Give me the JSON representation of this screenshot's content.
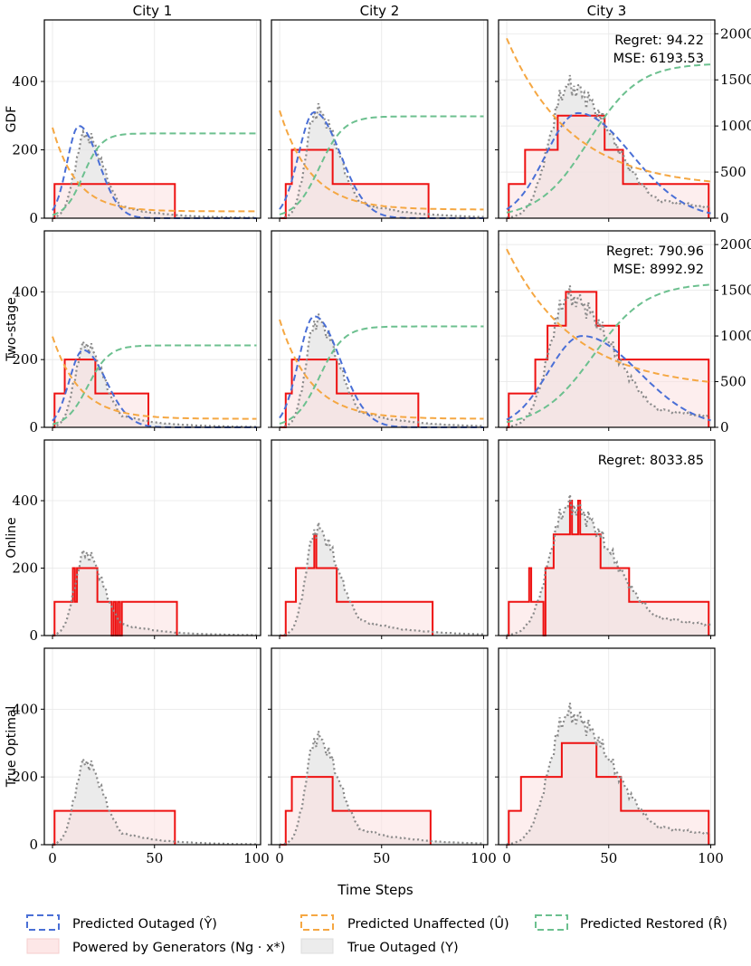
{
  "figure": {
    "xlabel": "Time Steps",
    "x_ticks": [
      0,
      50,
      100
    ],
    "y_ticks_left": [
      0,
      200,
      400
    ],
    "y_ticks_right": [
      0,
      500,
      1000,
      1500,
      2000
    ]
  },
  "columns": [
    "City 1",
    "City 2",
    "City 3"
  ],
  "rows": [
    "GDF",
    "Two-stage",
    "Online",
    "True Optimal"
  ],
  "colors": {
    "predicted_outaged": "#4a6fd6",
    "predicted_unaffected": "#f5a742",
    "predicted_restored": "#6cc08f",
    "powered": "#ee1111",
    "powered_fill": "#fbe0e0",
    "true_outaged": "#8a8a8a",
    "true_outaged_fill": "#e4e4e4"
  },
  "legend": [
    {
      "key": "predicted_outaged",
      "label": "Predicted Outaged (Ŷ)",
      "style": "dashed"
    },
    {
      "key": "predicted_unaffected",
      "label": "Predicted Unaffected (Û)",
      "style": "dashed"
    },
    {
      "key": "predicted_restored",
      "label": "Predicted Restored (R̂)",
      "style": "dashed"
    },
    {
      "key": "powered",
      "label": "Powered by Generators (Ng · x*)",
      "style": "fill"
    },
    {
      "key": "true_outaged",
      "label": "True Outaged (Y)",
      "style": "fill"
    }
  ],
  "annotations": {
    "gdf_city3": [
      "Regret:  94.22",
      "MSE:  6193.53"
    ],
    "twostage_city3": [
      "Regret:  790.96",
      "MSE:  8992.92"
    ],
    "online_city3": [
      "Regret:  8033.85"
    ]
  },
  "chart_data": {
    "type": "line",
    "x_range": [
      0,
      100
    ],
    "ylim_left": [
      0,
      580
    ],
    "ylim_right": [
      0,
      2150
    ],
    "true_outaged": [
      {
        "city": "City 1",
        "peak": 245,
        "peak_at": 16,
        "rise": 5,
        "decay": 9
      },
      {
        "city": "City 2",
        "peak": 315,
        "peak_at": 18,
        "rise": 5,
        "decay": 11
      },
      {
        "city": "City 3",
        "peak": 385,
        "peak_at": 30,
        "rise": 9,
        "decay": 22
      }
    ],
    "predicted": {
      "GDF": [
        {
          "outaged_peak": 270,
          "outaged_at": 13,
          "unaffected_start": 265,
          "unaffected_end": 20,
          "restored_end": 248
        },
        {
          "outaged_peak": 310,
          "outaged_at": 17,
          "unaffected_start": 315,
          "unaffected_end": 25,
          "restored_end": 298
        },
        {
          "outaged_peak": 1140,
          "outaged_at": 35,
          "unaffected_start": 1950,
          "unaffected_end": 330,
          "restored_end": 1680
        }
      ],
      "Two-stage": [
        {
          "outaged_peak": 228,
          "outaged_at": 15,
          "unaffected_start": 268,
          "unaffected_end": 25,
          "restored_end": 242
        },
        {
          "outaged_peak": 328,
          "outaged_at": 17,
          "unaffected_start": 318,
          "unaffected_end": 25,
          "restored_end": 298
        },
        {
          "outaged_peak": 1000,
          "outaged_at": 37,
          "unaffected_start": 1950,
          "unaffected_end": 420,
          "restored_end": 1580
        }
      ]
    },
    "powered_steps": {
      "GDF": [
        [
          [
            0,
            0
          ],
          [
            1,
            100
          ],
          [
            59,
            100
          ],
          [
            60,
            0
          ]
        ],
        [
          [
            0,
            0
          ],
          [
            3,
            100
          ],
          [
            6,
            200
          ],
          [
            25,
            200
          ],
          [
            26,
            100
          ],
          [
            72,
            100
          ],
          [
            73,
            0
          ]
        ],
        [
          [
            0,
            0
          ],
          [
            1,
            100
          ],
          [
            9,
            200
          ],
          [
            25,
            300
          ],
          [
            48,
            200
          ],
          [
            57,
            100
          ],
          [
            98,
            100
          ],
          [
            99,
            0
          ]
        ]
      ],
      "Two-stage": [
        [
          [
            0,
            0
          ],
          [
            1,
            100
          ],
          [
            6,
            200
          ],
          [
            21,
            100
          ],
          [
            46,
            100
          ],
          [
            47,
            0
          ]
        ],
        [
          [
            0,
            0
          ],
          [
            3,
            100
          ],
          [
            6,
            200
          ],
          [
            28,
            100
          ],
          [
            67,
            100
          ],
          [
            68,
            0
          ]
        ],
        [
          [
            0,
            0
          ],
          [
            1,
            100
          ],
          [
            14,
            200
          ],
          [
            20,
            300
          ],
          [
            29,
            400
          ],
          [
            44,
            300
          ],
          [
            55,
            200
          ],
          [
            98,
            200
          ],
          [
            99,
            0
          ]
        ]
      ],
      "Online": [
        [
          [
            0,
            0
          ],
          [
            1,
            100
          ],
          [
            9,
            100
          ],
          [
            10,
            200
          ],
          [
            11,
            100
          ],
          [
            12,
            200
          ],
          [
            14,
            200
          ],
          [
            15,
            200
          ],
          [
            21,
            200
          ],
          [
            22,
            100
          ],
          [
            28,
            100
          ],
          [
            29,
            0
          ],
          [
            30,
            100
          ],
          [
            31,
            0
          ],
          [
            32,
            100
          ],
          [
            33,
            0
          ],
          [
            34,
            100
          ],
          [
            60,
            100
          ],
          [
            61,
            0
          ]
        ],
        [
          [
            0,
            0
          ],
          [
            3,
            100
          ],
          [
            7,
            100
          ],
          [
            8,
            200
          ],
          [
            16,
            200
          ],
          [
            17,
            300
          ],
          [
            18,
            200
          ],
          [
            27,
            200
          ],
          [
            28,
            100
          ],
          [
            74,
            100
          ],
          [
            75,
            0
          ]
        ],
        [
          [
            0,
            0
          ],
          [
            1,
            100
          ],
          [
            10,
            100
          ],
          [
            11,
            200
          ],
          [
            12,
            100
          ],
          [
            17,
            100
          ],
          [
            18,
            0
          ],
          [
            19,
            200
          ],
          [
            22,
            200
          ],
          [
            23,
            300
          ],
          [
            30,
            300
          ],
          [
            31,
            400
          ],
          [
            32,
            300
          ],
          [
            34,
            300
          ],
          [
            35,
            400
          ],
          [
            36,
            300
          ],
          [
            45,
            300
          ],
          [
            46,
            200
          ],
          [
            59,
            200
          ],
          [
            60,
            100
          ],
          [
            98,
            100
          ],
          [
            99,
            0
          ]
        ]
      ],
      "True Optimal": [
        [
          [
            0,
            0
          ],
          [
            1,
            100
          ],
          [
            59,
            100
          ],
          [
            60,
            0
          ]
        ],
        [
          [
            0,
            0
          ],
          [
            3,
            100
          ],
          [
            6,
            200
          ],
          [
            25,
            200
          ],
          [
            26,
            100
          ],
          [
            73,
            100
          ],
          [
            74,
            0
          ]
        ],
        [
          [
            0,
            0
          ],
          [
            1,
            100
          ],
          [
            7,
            200
          ],
          [
            27,
            300
          ],
          [
            44,
            200
          ],
          [
            56,
            100
          ],
          [
            98,
            100
          ],
          [
            99,
            0
          ]
        ]
      ]
    }
  }
}
